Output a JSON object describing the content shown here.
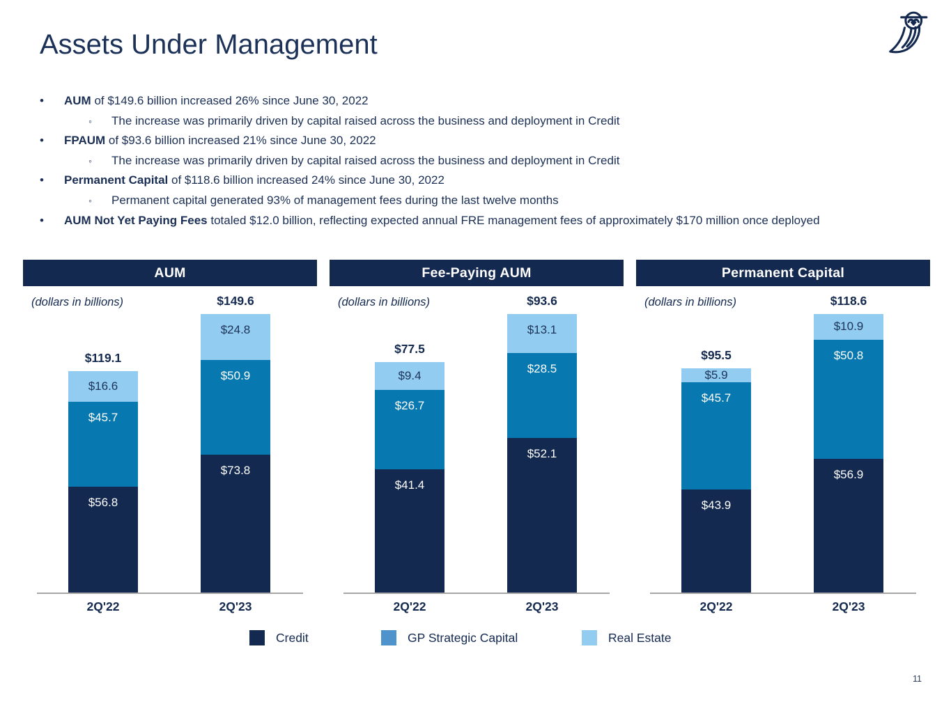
{
  "title": "Assets Under Management",
  "logo_icon": "owl-icon",
  "page_number": "11",
  "bullets": [
    {
      "lead": "AUM",
      "text": " of $149.6 billion increased 26% since June 30, 2022",
      "sub": "The increase was primarily driven by capital raised across the business and deployment in Credit"
    },
    {
      "lead": "FPAUM",
      "text": " of $93.6 billion increased 21% since June 30, 2022",
      "sub": "The increase was primarily driven by capital raised across the business and deployment in Credit"
    },
    {
      "lead": "Permanent Capital",
      "text": " of $118.6 billion increased 24% since June 30, 2022",
      "sub": "Permanent capital generated 93% of management fees during the last twelve months"
    },
    {
      "lead": "AUM Not Yet Paying Fees",
      "text": " totaled $12.0 billion, reflecting expected annual FRE management fees of approximately $170 million once deployed"
    }
  ],
  "colors": {
    "navy": "#14294f",
    "mid_blue": "#0878b0",
    "light_blue": "#92cdf1",
    "legend_gp_blue": "#4f93cd",
    "axis_gray": "#a6a6a6",
    "white": "#ffffff"
  },
  "legend": {
    "items": [
      {
        "label": "Credit",
        "color": "#14294f"
      },
      {
        "label": "GP Strategic Capital",
        "color": "#4f93cd"
      },
      {
        "label": "Real Estate",
        "color": "#92cdf1"
      }
    ]
  },
  "chart_data": [
    {
      "type": "bar",
      "stacked": true,
      "title": "AUM",
      "note": "(dollars in billions)",
      "categories": [
        "2Q'22",
        "2Q'23"
      ],
      "series": [
        {
          "name": "Credit",
          "color": "#14294f",
          "label_color": "#ffffff",
          "values": [
            56.8,
            73.8
          ]
        },
        {
          "name": "GP Strategic Capital",
          "color": "#0878b0",
          "label_color": "#ffffff",
          "values": [
            45.7,
            50.9
          ]
        },
        {
          "name": "Real Estate",
          "color": "#92cdf1",
          "label_color": "#1c3258",
          "values": [
            16.6,
            24.8
          ]
        }
      ],
      "totals": [
        119.1,
        149.6
      ],
      "ylim": [
        0,
        149.6
      ],
      "grid": false,
      "legend_position": "bottom"
    },
    {
      "type": "bar",
      "stacked": true,
      "title": "Fee-Paying AUM",
      "note": "(dollars in billions)",
      "categories": [
        "2Q'22",
        "2Q'23"
      ],
      "series": [
        {
          "name": "Credit",
          "color": "#14294f",
          "label_color": "#ffffff",
          "values": [
            41.4,
            52.1
          ]
        },
        {
          "name": "GP Strategic Capital",
          "color": "#0878b0",
          "label_color": "#ffffff",
          "values": [
            26.7,
            28.5
          ]
        },
        {
          "name": "Real Estate",
          "color": "#92cdf1",
          "label_color": "#1c3258",
          "values": [
            9.4,
            13.1
          ]
        }
      ],
      "totals": [
        77.5,
        93.6
      ],
      "ylim": [
        0,
        93.6
      ],
      "grid": false,
      "legend_position": "bottom"
    },
    {
      "type": "bar",
      "stacked": true,
      "title": "Permanent Capital",
      "note": "(dollars in billions)",
      "categories": [
        "2Q'22",
        "2Q'23"
      ],
      "series": [
        {
          "name": "Credit",
          "color": "#14294f",
          "label_color": "#ffffff",
          "values": [
            43.9,
            56.9
          ]
        },
        {
          "name": "GP Strategic Capital",
          "color": "#0878b0",
          "label_color": "#ffffff",
          "values": [
            45.7,
            50.8
          ]
        },
        {
          "name": "Real Estate",
          "color": "#92cdf1",
          "label_color": "#1c3258",
          "values": [
            5.9,
            10.9
          ]
        }
      ],
      "totals": [
        95.5,
        118.6
      ],
      "ylim": [
        0,
        118.6
      ],
      "grid": false,
      "legend_position": "bottom"
    }
  ]
}
